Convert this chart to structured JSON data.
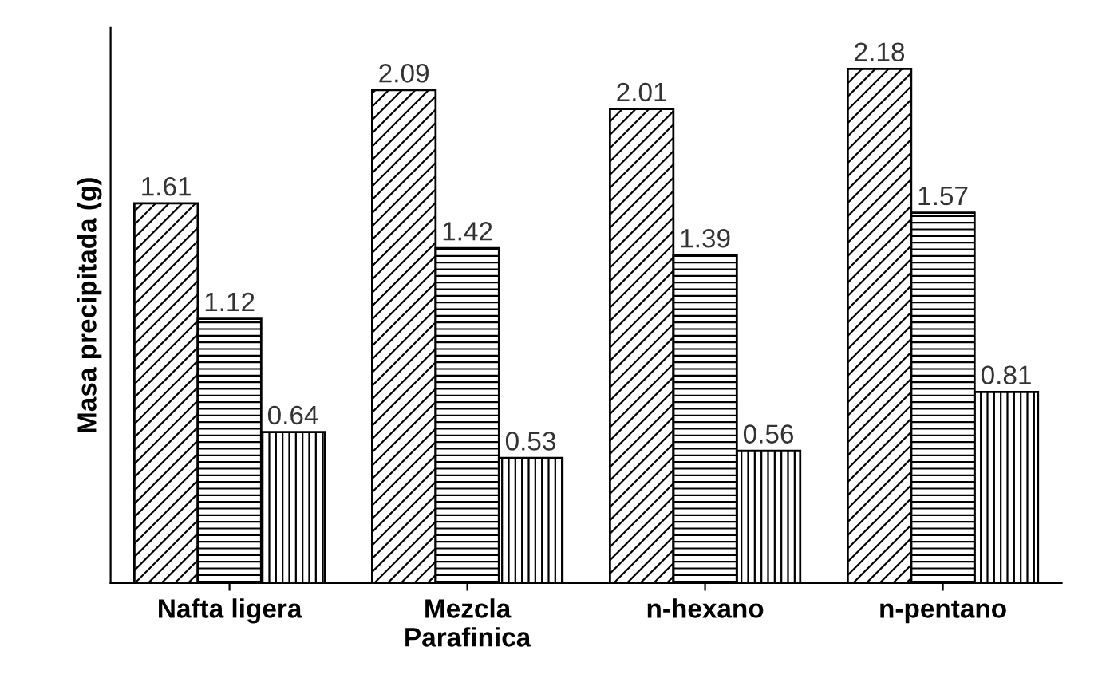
{
  "chart_data": {
    "type": "bar",
    "ylabel": "Masa precipitada (g)",
    "categories": [
      "Nafta ligera",
      "Mezcla\nParafinica",
      "n-hexano",
      "n-pentano"
    ],
    "series": [
      {
        "color": "#000000",
        "values": [
          1.61,
          2.09,
          2.01,
          2.18
        ]
      },
      {
        "color": "#000000",
        "values": [
          1.12,
          1.42,
          1.39,
          1.57
        ]
      },
      {
        "color": "#000000",
        "values": [
          0.64,
          0.53,
          0.56,
          0.81
        ]
      }
    ],
    "data_labels": true,
    "grid": false
  }
}
